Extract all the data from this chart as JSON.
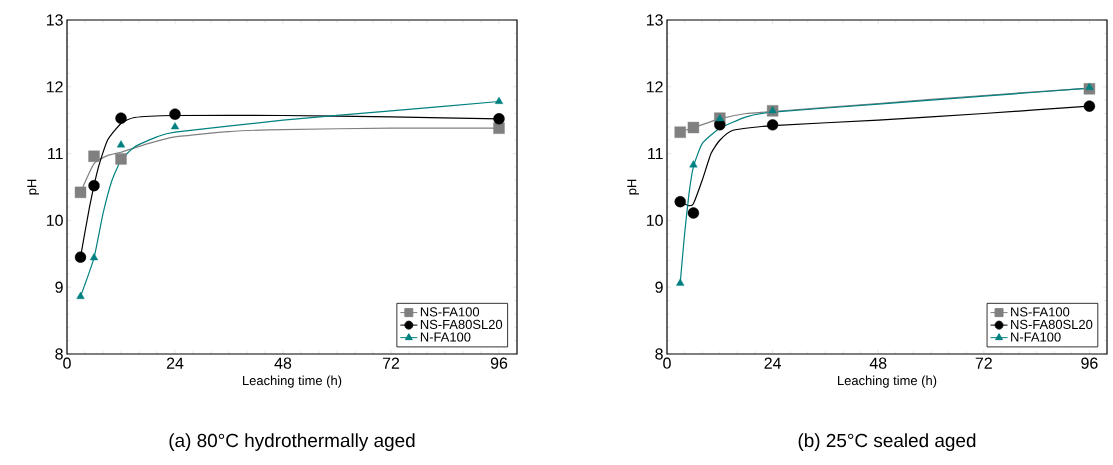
{
  "chart_data": [
    {
      "type": "scatter",
      "title": "(a) 80°C hydrothermally aged",
      "xlabel": "Leaching time (h)",
      "ylabel": "pH",
      "xlim": [
        0,
        100
      ],
      "ylim": [
        8,
        13
      ],
      "xticks": [
        0,
        24,
        48,
        72,
        96
      ],
      "yticks": [
        8,
        9,
        10,
        11,
        12,
        13
      ],
      "legend": "bottom right",
      "x": [
        3,
        6,
        12,
        24,
        96
      ],
      "series": [
        {
          "name": "NS-FA100",
          "color": "#808080",
          "marker": "square",
          "values": [
            10.42,
            10.96,
            10.92,
            null,
            11.38
          ]
        },
        {
          "name": "NS-FA80SL20",
          "color": "#000000",
          "marker": "circle",
          "values": [
            9.45,
            10.52,
            11.53,
            11.59,
            11.52
          ]
        },
        {
          "name": "N-FA100",
          "color": "#008080",
          "marker": "triangle",
          "values": [
            8.86,
            9.44,
            11.13,
            11.4,
            11.78
          ]
        },
        {
          "type": "line",
          "color": "#808080",
          "marker": "none",
          "x": [
            3,
            6,
            9,
            12,
            18,
            24,
            36,
            48,
            72,
            96
          ],
          "values": [
            10.42,
            10.85,
            10.97,
            11.02,
            11.15,
            11.25,
            11.33,
            11.36,
            11.38,
            11.38
          ]
        },
        {
          "type": "line",
          "color": "#000000",
          "marker": "none",
          "x": [
            3,
            5,
            7,
            9,
            12,
            15,
            24,
            48,
            72,
            96
          ],
          "values": [
            9.45,
            10.2,
            10.8,
            11.2,
            11.45,
            11.54,
            11.57,
            11.57,
            11.55,
            11.52
          ]
        },
        {
          "type": "line",
          "color": "#008080",
          "marker": "none",
          "x": [
            3,
            6,
            8,
            10,
            12,
            15,
            20,
            24,
            48,
            72,
            96
          ],
          "values": [
            8.86,
            9.44,
            10.1,
            10.6,
            10.9,
            11.1,
            11.25,
            11.32,
            11.5,
            11.64,
            11.78
          ]
        }
      ]
    },
    {
      "type": "scatter",
      "title": "(b) 25°C sealed aged",
      "xlabel": "Leaching time (h)",
      "ylabel": "pH",
      "xlim": [
        0,
        100
      ],
      "ylim": [
        8,
        13
      ],
      "xticks": [
        0,
        24,
        48,
        72,
        96
      ],
      "yticks": [
        8,
        9,
        10,
        11,
        12,
        13
      ],
      "legend": "bottom right",
      "x": [
        3,
        6,
        12,
        24,
        96
      ],
      "series": [
        {
          "name": "NS-FA100",
          "color": "#808080",
          "marker": "square",
          "values": [
            11.32,
            11.39,
            11.53,
            11.64,
            11.97
          ]
        },
        {
          "name": "NS-FA80SL20",
          "color": "#000000",
          "marker": "circle",
          "values": [
            10.28,
            10.11,
            11.43,
            11.43,
            11.71
          ]
        },
        {
          "name": "N-FA100",
          "color": "#008080",
          "marker": "triangle",
          "values": [
            9.06,
            10.83,
            11.52,
            11.64,
            11.99
          ]
        },
        {
          "type": "line",
          "color": "#808080",
          "marker": "none",
          "x": [
            3,
            6,
            12,
            18,
            24,
            48,
            72,
            96
          ],
          "values": [
            11.32,
            11.39,
            11.52,
            11.6,
            11.63,
            11.75,
            11.87,
            11.98
          ]
        },
        {
          "type": "line",
          "color": "#000000",
          "marker": "none",
          "x": [
            3,
            5,
            6,
            8,
            10,
            12,
            15,
            24,
            48,
            72,
            96
          ],
          "values": [
            10.28,
            10.22,
            10.25,
            10.6,
            11.0,
            11.2,
            11.35,
            11.42,
            11.5,
            11.6,
            11.71
          ]
        },
        {
          "type": "line",
          "color": "#008080",
          "marker": "none",
          "x": [
            3,
            4,
            5,
            6,
            8,
            12,
            18,
            24,
            48,
            72,
            96
          ],
          "values": [
            9.06,
            9.8,
            10.4,
            10.8,
            11.15,
            11.38,
            11.55,
            11.62,
            11.74,
            11.86,
            11.98
          ]
        }
      ]
    }
  ]
}
